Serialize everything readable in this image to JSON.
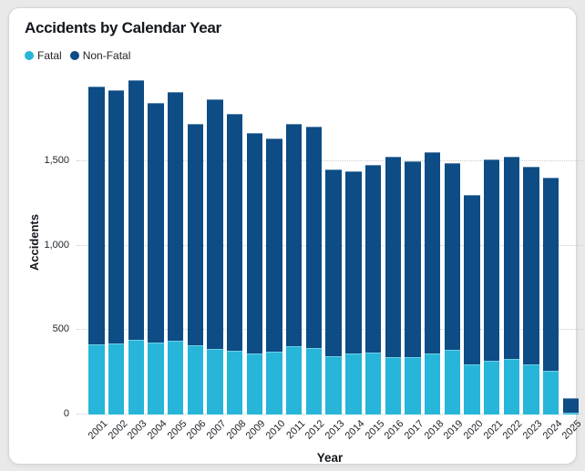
{
  "chart_data": {
    "type": "bar",
    "stacked": true,
    "title": "Accidents by Calendar Year",
    "xlabel": "Year",
    "ylabel": "Accidents",
    "categories": [
      "2001",
      "2002",
      "2003",
      "2004",
      "2005",
      "2006",
      "2007",
      "2008",
      "2009",
      "2010",
      "2011",
      "2012",
      "2013",
      "2014",
      "2015",
      "2016",
      "2017",
      "2018",
      "2019",
      "2020",
      "2021",
      "2022",
      "2023",
      "2024",
      "2025"
    ],
    "series": [
      {
        "name": "Fatal",
        "color": "#27B5D9",
        "values": [
          415,
          420,
          445,
          425,
          435,
          410,
          390,
          380,
          360,
          370,
          405,
          395,
          345,
          360,
          365,
          340,
          340,
          360,
          385,
          295,
          320,
          330,
          295,
          260,
          10
        ]
      },
      {
        "name": "Non-Fatal",
        "color": "#0D4C84",
        "values": [
          1530,
          1500,
          1535,
          1420,
          1475,
          1310,
          1480,
          1400,
          1310,
          1265,
          1315,
          1310,
          1105,
          1080,
          1115,
          1190,
          1160,
          1195,
          1105,
          1005,
          1190,
          1200,
          1175,
          1145,
          85
        ]
      }
    ],
    "totals": [
      1945,
      1920,
      1980,
      1845,
      1910,
      1720,
      1870,
      1780,
      1670,
      1635,
      1720,
      1705,
      1450,
      1440,
      1480,
      1530,
      1500,
      1555,
      1490,
      1300,
      1510,
      1530,
      1470,
      1405,
      95
    ],
    "ylim": [
      0,
      2035
    ],
    "yticks": [
      0,
      500,
      1000,
      1500
    ],
    "ytick_labels": [
      "0",
      "500",
      "1,000",
      "1,500"
    ],
    "grid": "horizontal-dotted",
    "legend_position": "top-left"
  }
}
